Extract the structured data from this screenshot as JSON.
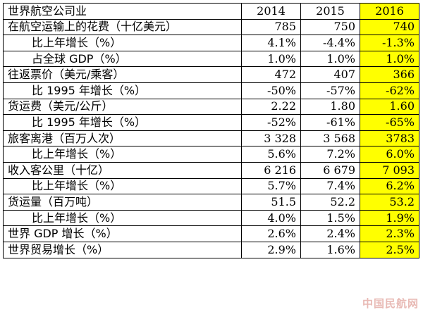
{
  "chart_data": {
    "type": "table",
    "title": "世界航空公司业",
    "columns": [
      "2014",
      "2015",
      "2016"
    ],
    "highlight_column": "2016",
    "highlight_color": "#ffff00",
    "rows": [
      {
        "label": "在航空运输上的花费（十亿美元）",
        "indent": false,
        "values": [
          "785",
          "750",
          "740"
        ]
      },
      {
        "label": "比上年增长（%）",
        "indent": true,
        "values": [
          "4.1%",
          "-4.4%",
          "-1.3%"
        ]
      },
      {
        "label": "占全球 GDP（%）",
        "indent": true,
        "values": [
          "1.0%",
          "1.0%",
          "1.0%"
        ]
      },
      {
        "label": "往返票价（美元/乘客）",
        "indent": false,
        "values": [
          "472",
          "407",
          "366"
        ]
      },
      {
        "label": "比 1995 年增长（%）",
        "indent": true,
        "values": [
          "-50%",
          "-57%",
          "-62%"
        ]
      },
      {
        "label": "货运费（美元/公斤）",
        "indent": false,
        "values": [
          "2.22",
          "1.80",
          "1.60"
        ]
      },
      {
        "label": "比 1995 年增长（%）",
        "indent": true,
        "values": [
          "-52%",
          "-61%",
          "-65%"
        ]
      },
      {
        "label": "旅客离港（百万人次）",
        "indent": false,
        "values": [
          "3 328",
          "3 568",
          "3783"
        ]
      },
      {
        "label": "比上年增长（%）",
        "indent": true,
        "values": [
          "5.6%",
          "7.2%",
          "6.0%"
        ]
      },
      {
        "label": "收入客公里（十亿）",
        "indent": false,
        "values": [
          "6 216",
          "6 679",
          "7 093"
        ]
      },
      {
        "label": "比上年增长（%）",
        "indent": true,
        "values": [
          "5.7%",
          "7.4%",
          "6.2%"
        ]
      },
      {
        "label": "货运量（百万吨）",
        "indent": false,
        "values": [
          "51.5",
          "52.2",
          "53.2"
        ]
      },
      {
        "label": "比上年增长（%）",
        "indent": true,
        "values": [
          "4.0%",
          "1.5%",
          "1.9%"
        ]
      },
      {
        "label": "世界 GDP 增长（%）",
        "indent": false,
        "values": [
          "2.6%",
          "2.4%",
          "2.3%"
        ]
      },
      {
        "label": "世界贸易增长（%）",
        "indent": false,
        "values": [
          "2.9%",
          "1.6%",
          "2.5%"
        ]
      }
    ]
  },
  "watermark": "中国民航网"
}
